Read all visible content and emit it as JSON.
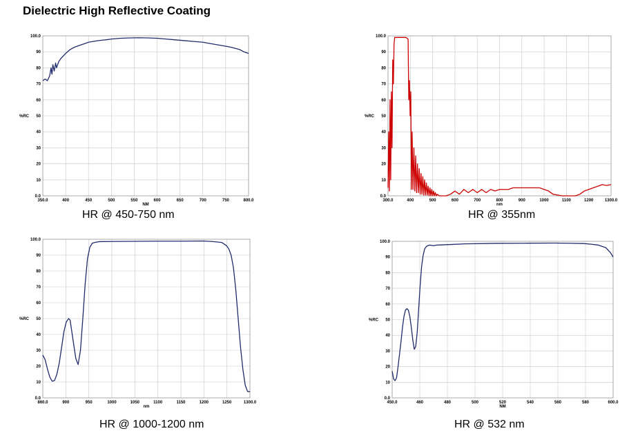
{
  "page": {
    "title": "Dielectric High Reflective Coating"
  },
  "chart_data": [
    {
      "type": "line",
      "caption": "HR @ 450-750 nm",
      "color": "#1f2a6b",
      "xlabel": "NM",
      "ylabel": "%RC",
      "xlim": [
        350,
        800
      ],
      "ylim": [
        0,
        100
      ],
      "xticks": [
        "350.0",
        "400",
        "450",
        "500",
        "550",
        "600",
        "650",
        "700",
        "750",
        "800.0"
      ],
      "yticks": [
        "0.0",
        "10",
        "20",
        "30",
        "40",
        "50",
        "60",
        "70",
        "80",
        "90",
        "100.0"
      ],
      "grid": true,
      "series": [
        {
          "x": [
            350,
            355,
            360,
            365,
            368,
            370,
            372,
            375,
            378,
            380,
            385,
            390,
            400,
            410,
            420,
            430,
            440,
            450,
            460,
            470,
            480,
            490,
            500,
            520,
            540,
            560,
            580,
            600,
            620,
            640,
            660,
            680,
            700,
            720,
            740,
            760,
            780,
            790,
            800
          ],
          "y": [
            72,
            73,
            72,
            75,
            80,
            76,
            82,
            78,
            83,
            80,
            84,
            86,
            89,
            91.5,
            93,
            94,
            95,
            96,
            96.5,
            97,
            97.3,
            97.6,
            98,
            98.5,
            98.7,
            98.8,
            98.7,
            98.5,
            98,
            97.5,
            97,
            96.5,
            96,
            95,
            94,
            93,
            91.5,
            90,
            89
          ]
        }
      ]
    },
    {
      "type": "line",
      "caption": "HR @ 355nm",
      "color": "#cc0000",
      "xlabel": "nm",
      "ylabel": "%RC",
      "xlim": [
        300,
        1300
      ],
      "ylim": [
        0,
        100
      ],
      "xticks": [
        "300.0",
        "400",
        "500",
        "600",
        "700",
        "800",
        "900",
        "1000",
        "1100",
        "1200",
        "1300.0"
      ],
      "yticks": [
        "0.0",
        "10",
        "20",
        "30",
        "40",
        "50",
        "60",
        "70",
        "80",
        "90",
        "100.0"
      ],
      "grid": true,
      "series": [
        {
          "x": [
            300,
            303,
            306,
            309,
            312,
            315,
            318,
            321,
            324,
            327,
            330,
            335,
            340,
            360,
            380,
            390,
            393,
            396,
            399,
            402,
            405,
            408,
            412,
            416,
            420,
            424,
            428,
            432,
            436,
            440,
            444,
            448,
            452,
            456,
            460,
            464,
            468,
            472,
            476,
            480,
            484,
            488,
            492,
            496,
            500,
            504,
            508,
            512,
            516,
            520,
            530,
            540,
            560,
            580,
            600,
            620,
            640,
            660,
            680,
            700,
            720,
            740,
            760,
            780,
            800,
            820,
            840,
            860,
            880,
            900,
            920,
            940,
            960,
            980,
            1000,
            1020,
            1040,
            1060,
            1080,
            1100,
            1120,
            1140,
            1160,
            1180,
            1200,
            1220,
            1240,
            1260,
            1280,
            1300
          ],
          "y": [
            5,
            40,
            3,
            60,
            10,
            65,
            30,
            85,
            70,
            95,
            99,
            99,
            99,
            99,
            99,
            98,
            60,
            72,
            50,
            65,
            4,
            40,
            4,
            30,
            3,
            25,
            2,
            20,
            2,
            17,
            1,
            14,
            1,
            12,
            0.5,
            10,
            0.5,
            8,
            0.5,
            6,
            0,
            5,
            0,
            4,
            0,
            3,
            0,
            2,
            0,
            1,
            0,
            0,
            0,
            1,
            3,
            1,
            4,
            2,
            4,
            2,
            4,
            2,
            4,
            3,
            4,
            4,
            4,
            5,
            5,
            5,
            5,
            5,
            5,
            5,
            4,
            3,
            1,
            0.5,
            0,
            0,
            0,
            0,
            1,
            3,
            4,
            5,
            6,
            7,
            6.5,
            7
          ]
        }
      ]
    },
    {
      "type": "line",
      "caption": "HR @ 1000-1200 nm",
      "color": "#1f2a6b",
      "xlabel": "nm",
      "ylabel": "%RC",
      "xlim": [
        860,
        1300
      ],
      "ylim": [
        0,
        100
      ],
      "xticks": [
        "860.0",
        "900",
        "950",
        "1000",
        "1050",
        "1100",
        "1150",
        "1200",
        "1250",
        "1300.0"
      ],
      "yticks": [
        "0.0",
        "10",
        "20",
        "30",
        "40",
        "50",
        "60",
        "70",
        "80",
        "90",
        "100.0"
      ],
      "grid": true,
      "series": [
        {
          "x": [
            860,
            865,
            870,
            875,
            880,
            885,
            890,
            895,
            900,
            905,
            910,
            915,
            918,
            920,
            925,
            930,
            935,
            940,
            945,
            950,
            955,
            960,
            965,
            970,
            980,
            1000,
            1050,
            1100,
            1150,
            1200,
            1220,
            1240,
            1250,
            1255,
            1260,
            1265,
            1270,
            1275,
            1280,
            1285,
            1290,
            1295,
            1300
          ],
          "y": [
            27,
            24,
            18,
            13,
            10.5,
            11,
            15,
            22,
            32,
            42,
            48,
            50,
            49,
            45,
            35,
            25,
            21,
            30,
            50,
            72,
            88,
            95,
            97.5,
            98,
            98.5,
            98.6,
            98.7,
            98.8,
            98.8,
            98.9,
            98.6,
            98,
            96,
            94,
            90,
            82,
            68,
            50,
            32,
            18,
            8,
            4,
            4
          ]
        }
      ]
    },
    {
      "type": "line",
      "caption": "HR @ 532 nm",
      "color": "#1f2a6b",
      "xlabel": "NM",
      "ylabel": "%RC",
      "xlim": [
        450,
        600
      ],
      "ylim": [
        0,
        100
      ],
      "xticks": [
        "450.0",
        "460",
        "480",
        "500",
        "520",
        "540",
        "560",
        "580",
        "600.0"
      ],
      "yticks": [
        "0.0",
        "10",
        "20",
        "30",
        "40",
        "50",
        "60",
        "70",
        "80",
        "90",
        "100.0"
      ],
      "grid": true,
      "series": [
        {
          "x": [
            450,
            451,
            452,
            453,
            454,
            455,
            456,
            457,
            458,
            459,
            460,
            461,
            462,
            463,
            464,
            465,
            466,
            467,
            468,
            469,
            470,
            471,
            472,
            473,
            474,
            475,
            476,
            478,
            480,
            490,
            500,
            520,
            540,
            560,
            570,
            580,
            585,
            590,
            595,
            598,
            600
          ],
          "y": [
            17,
            12,
            11,
            13,
            20,
            28,
            36,
            45,
            52,
            56,
            57,
            56,
            52,
            45,
            37,
            31,
            33,
            42,
            57,
            72,
            84,
            91,
            95,
            96.5,
            97.2,
            97.5,
            97.6,
            97.2,
            97.6,
            98,
            98.4,
            98.7,
            98.8,
            98.9,
            98.8,
            98.6,
            98.2,
            97.6,
            96,
            93,
            90
          ]
        }
      ]
    }
  ]
}
